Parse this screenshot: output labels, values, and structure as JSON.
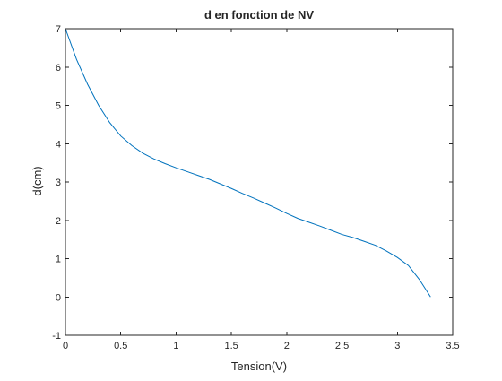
{
  "chart_data": {
    "type": "line",
    "title": "d en fonction de NV",
    "xlabel": "Tension(V)",
    "ylabel": "d(cm)",
    "xlim": [
      0,
      3.5
    ],
    "ylim": [
      -1,
      7
    ],
    "xticks": [
      0,
      0.5,
      1,
      1.5,
      2,
      2.5,
      3,
      3.5
    ],
    "yticks": [
      -1,
      0,
      1,
      2,
      3,
      4,
      5,
      6,
      7
    ],
    "xtick_labels": [
      "0",
      "0.5",
      "1",
      "1.5",
      "2",
      "2.5",
      "3",
      "3.5"
    ],
    "ytick_labels": [
      "-1",
      "0",
      "1",
      "2",
      "3",
      "4",
      "5",
      "6",
      "7"
    ],
    "grid": false,
    "series": [
      {
        "color": "#0072bd",
        "x": [
          0,
          0.1,
          0.2,
          0.3,
          0.4,
          0.5,
          0.6,
          0.7,
          0.8,
          0.9,
          1.0,
          1.1,
          1.2,
          1.3,
          1.4,
          1.5,
          1.6,
          1.7,
          1.8,
          1.9,
          2.0,
          2.1,
          2.2,
          2.3,
          2.4,
          2.5,
          2.6,
          2.7,
          2.8,
          2.9,
          3.0,
          3.1,
          3.2,
          3.3
        ],
        "y": [
          7.0,
          6.2,
          5.55,
          5.0,
          4.55,
          4.2,
          3.95,
          3.75,
          3.6,
          3.48,
          3.37,
          3.27,
          3.17,
          3.07,
          2.95,
          2.83,
          2.7,
          2.58,
          2.45,
          2.32,
          2.18,
          2.05,
          1.95,
          1.85,
          1.74,
          1.63,
          1.55,
          1.45,
          1.35,
          1.2,
          1.03,
          0.82,
          0.45,
          0.0
        ]
      }
    ]
  }
}
